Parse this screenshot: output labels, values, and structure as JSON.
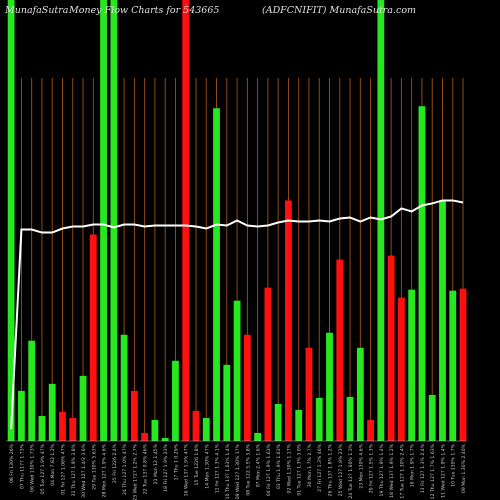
{
  "header": {
    "site": "MunafaSutra",
    "chart_title": "Money Flow  Charts for 543665",
    "ticker_caption": "(ADFCNIFIT) MunafaSutra.com"
  },
  "chart_data": {
    "type": "bar",
    "x": [
      "08 Fri Aug 2025",
      "07 Thu Aug 2025",
      "06 Wed Aug 2025",
      "05 Tue Aug 2025",
      "04 Mon Aug 2025",
      "01 Fri Aug 2025",
      "31 Thu Jul 2025",
      "30 Wed Jul 2025",
      "29 Tue Jul 2025",
      "28 Mon Jul 2025",
      "25 Fri Jul 2025",
      "24 Thu Jul 2025",
      "23 Wed Jul 2025",
      "22 Tue Jul 2025",
      "21 Mon Jul 2025",
      "18 Fri Jul 2025",
      "17 Thu Jul 2025",
      "16 Wed Jul 2025",
      "15 Tue Jul 2025",
      "14 Mon Jul 2025",
      "11 Fri Jul 2025",
      "10 Thu Jul 2025",
      "09 Wed Jul 2025",
      "08 Tue Jul 2025",
      "07 Mon Jul 2025",
      "04 Fri Jul 2025",
      "03 Thu Jul 2025",
      "02 Wed Jul 2025",
      "01 Tue Jul 2025",
      "30 Mon Jun 2025",
      "27 Fri Jun 2025",
      "26 Thu Jun 2025",
      "25 Wed Jun 2025",
      "24 Tue Jun 2025",
      "23 Mon Jun 2025",
      "20 Fri Jun 2025",
      "19 Thu Jun 2025",
      "18 Wed Jun 2025",
      "17 Tue Jun 2025",
      "16 Mon Jun 2025",
      "13 Fri Jun 2025",
      "12 Thu Jun 2025",
      "11 Wed Jun 2025",
      "10 Tue Jun 2025",
      "09 Mon Jun 2025"
    ],
    "x_labels": [
      "08 Fri 130% 26%",
      "07 Thu 1177 1.73%",
      "06 Wed 130% 1.73%",
      "05 Tue 127 1.9% 47%",
      "04 Mon 7.82 1.2%",
      "01 Fri 127 1.06% 47%",
      "31 Thu 127 1.9% 3.8%",
      "30 Wed 127 1.4/2 3.6%",
      "29 Tue 130% 5.63%",
      "28 Mon 127 1.9% 4.6%",
      "25 Fri 1226 2.4%",
      "24 Thu 127 1.0% 47%",
      "23 Wed 1727 1.2% 2.7%",
      "22 Tue 137 0.8% 46%",
      "21 Mon 12 1.45%",
      "18 Fri 127 1.9% 23%",
      "17 Thu 1 0.29%",
      "16 Wed 137 1.9% 47%",
      "15 Tue 1226 1.8%",
      "14 Mon 1.30% 47%",
      "11 Fri 127 1.3% 4.1%",
      "10 Thu 137 1.63% 1.4%",
      "09 Wed 127 1.30% 17%",
      "08 Tue 122 5.5% 3.8%",
      "07 Mon 2.4% 1.6%",
      "04 Fri 127 1.9% 1.63%",
      "03 Thu 1.9% 1.63%",
      "02 Wed 1.30% 1.17%",
      "01 Tue 127 1.3% 3.0%",
      "30 Mon 1.7% 2.7%",
      "27 Fri 127 1.3% 46%",
      "26 Thu 137 1.8% 1.2%",
      "25 Wed 127 1.9% 23%",
      "24 Tue 127 1.60% 1.3%",
      "23 Mon 130% 4.6%",
      "20 Fri 127 1.5% 1.3%",
      "19 Thu 127 1.9% 1.4%",
      "18 Wed 137 1.9% 1.2%",
      "17 Tue 127 1.30% 2.4%",
      "16 Mon 1.9% 1.7%",
      "13 Fri 127 1.3% 2.4%",
      "12 Thu 127 1.7% 1.63%",
      "11 Wed 127 1.9% 1.4%",
      "10 Tue 130% 1.7%",
      "09 Mon 1.30% 2.40%"
    ],
    "series": [
      {
        "values": [
          440,
          50,
          100,
          25,
          57,
          29,
          23,
          65,
          206,
          440,
          440,
          106,
          50,
          8,
          21,
          3,
          80,
          440,
          30,
          23,
          332,
          76,
          140,
          106,
          8,
          153,
          37,
          240,
          31,
          93,
          43,
          108,
          181,
          44,
          93,
          21,
          440,
          185,
          143,
          151,
          334,
          46,
          239,
          150,
          152
        ],
        "signs": [
          "+",
          "+",
          "+",
          "+",
          "+",
          "-",
          "-",
          "+",
          "-",
          "+",
          "+",
          "+",
          "-",
          "-",
          "+",
          "+",
          "+",
          "-",
          "-",
          "+",
          "+",
          "+",
          "+",
          "-",
          "+",
          "-",
          "+",
          "-",
          "+",
          "-",
          "+",
          "+",
          "-",
          "+",
          "+",
          "-",
          "+",
          "-",
          "-",
          "+",
          "+",
          "+",
          "+",
          "+",
          "-"
        ]
      },
      {
        "values": [
          12,
          211,
          211,
          208,
          208,
          212,
          214,
          214,
          216,
          216,
          213,
          216,
          216,
          214,
          215,
          215,
          215,
          215,
          214,
          212,
          216,
          215,
          220,
          215,
          214,
          215,
          218,
          220,
          219,
          219,
          220,
          219,
          222,
          223,
          219,
          223,
          221,
          224,
          232,
          229,
          235,
          237,
          240,
          240,
          238
        ]
      }
    ],
    "ylim": [
      0,
      440
    ],
    "colors": {
      "up": "#27e81f",
      "down": "#ff1010",
      "line": "#ffffff",
      "grid": "#a0521a",
      "background": "#000000",
      "axis": "#cccccc"
    },
    "grid": true
  }
}
